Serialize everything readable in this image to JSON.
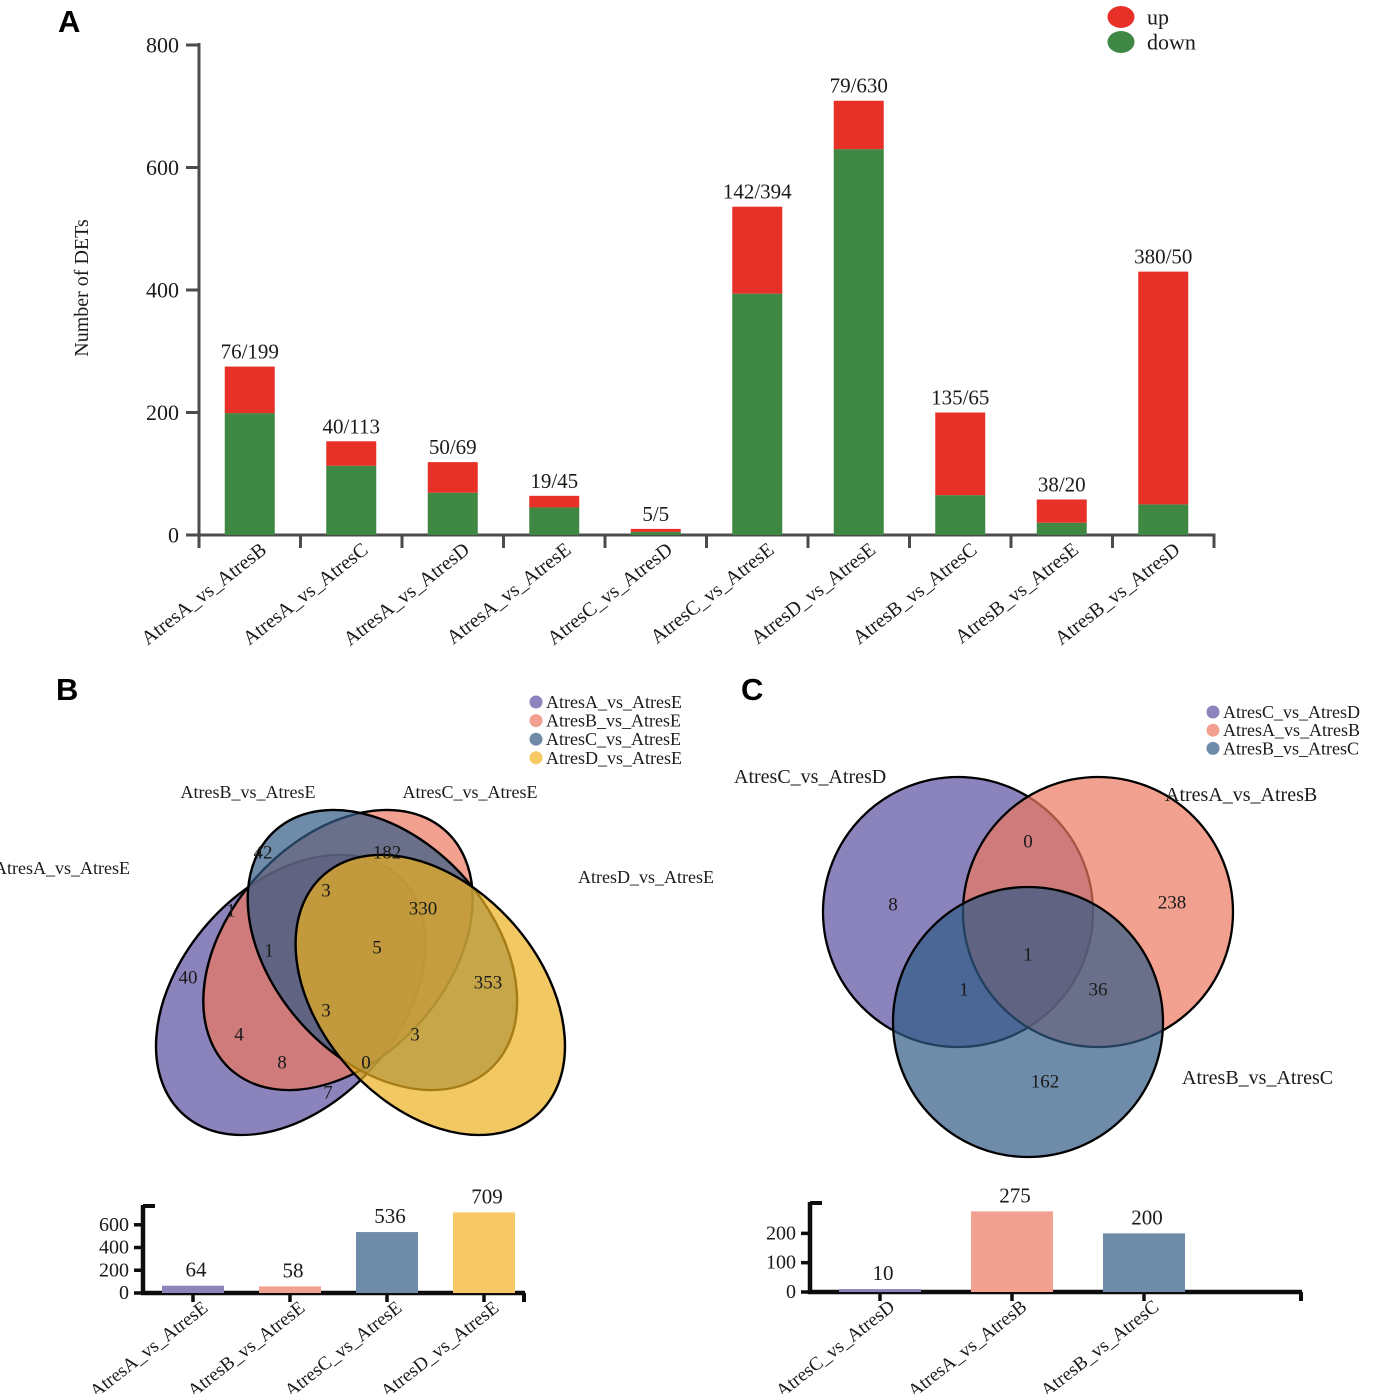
{
  "panels": {
    "a": {
      "letter": "A"
    },
    "b": {
      "letter": "B"
    },
    "c": {
      "letter": "C"
    }
  },
  "colors": {
    "up_red": "#e73128",
    "down_green": "#3e8843",
    "axis_gray": "#4b4b4b",
    "mini_axis_black": "#0d0d0d",
    "venn_display": {
      "purple": "#8b84bd",
      "salmon": "#f2a08f",
      "blue": "#6e8caa",
      "yellow": "#f7c863"
    },
    "venn_base": {
      "purple": "#5a50a0",
      "salmon": "#ec775f",
      "blue": "#305b86",
      "yellow": "#edb020"
    }
  },
  "chart_data": [
    {
      "id": "detsStacked",
      "type": "bar",
      "stacked": true,
      "ylabel": "Number of DETs",
      "yticks": [
        0,
        200,
        400,
        600,
        800
      ],
      "ylim": [
        0,
        800
      ],
      "grid": false,
      "legend_position": "top-right",
      "categories": [
        "AtresA_vs_AtresB",
        "AtresA_vs_AtresC",
        "AtresA_vs_AtresD",
        "AtresA_vs_AtresE",
        "AtresC_vs_AtresD",
        "AtresC_vs_AtresE",
        "AtresD_vs_AtresE",
        "AtresB_vs_AtresC",
        "AtresB_vs_AtresE",
        "AtresB_vs_AtresD"
      ],
      "series": [
        {
          "name": "down",
          "color": "#3e8843",
          "values": [
            199,
            113,
            69,
            45,
            5,
            394,
            630,
            65,
            20,
            50
          ]
        },
        {
          "name": "up",
          "color": "#e73128",
          "values": [
            76,
            40,
            50,
            19,
            5,
            142,
            79,
            135,
            38,
            380
          ]
        }
      ],
      "bar_labels": [
        "76/199",
        "40/113",
        "50/69",
        "19/45",
        "5/5",
        "142/394",
        "79/630",
        "135/65",
        "38/20",
        "380/50"
      ],
      "legend": [
        {
          "label": "up",
          "color": "#e73128"
        },
        {
          "label": "down",
          "color": "#3e8843"
        }
      ]
    },
    {
      "id": "vennB",
      "type": "venn",
      "sets": [
        {
          "key": "A",
          "name": "AtresA_vs_AtresE",
          "base_color": "#5a50a0",
          "display_color": "#8b84bd"
        },
        {
          "key": "B",
          "name": "AtresB_vs_AtresE",
          "base_color": "#ec775f",
          "display_color": "#f2a08f"
        },
        {
          "key": "C",
          "name": "AtresC_vs_AtresE",
          "base_color": "#305b86",
          "display_color": "#6e8caa"
        },
        {
          "key": "D",
          "name": "AtresD_vs_AtresE",
          "base_color": "#edb020",
          "display_color": "#f7c863"
        }
      ],
      "regions": {
        "A": 40,
        "B": 42,
        "C": 182,
        "D": 353,
        "AB": 1,
        "AC": 4,
        "AD": 7,
        "BC": 3,
        "BD": 3,
        "CD": 330,
        "ABC": 1,
        "ABD": 0,
        "ACD": 8,
        "BCD": 5,
        "ABCD": 3
      }
    },
    {
      "id": "vennBBar",
      "type": "bar",
      "categories": [
        "AtresA_vs_AtresE",
        "AtresB_vs_AtresE",
        "AtresC_vs_AtresE",
        "AtresD_vs_AtresE"
      ],
      "values": [
        64,
        58,
        536,
        709
      ],
      "colors": [
        "#8b84bd",
        "#f2a08f",
        "#6e8caa",
        "#f7c863"
      ],
      "yticks": [
        0,
        200,
        400,
        600
      ],
      "ylim": [
        0,
        730
      ]
    },
    {
      "id": "vennC",
      "type": "venn",
      "sets": [
        {
          "key": "A",
          "name": "AtresC_vs_AtresD",
          "base_color": "#5a50a0",
          "display_color": "#8b84bd"
        },
        {
          "key": "B",
          "name": "AtresA_vs_AtresB",
          "base_color": "#ec775f",
          "display_color": "#f2a08f"
        },
        {
          "key": "C",
          "name": "AtresB_vs_AtresC",
          "base_color": "#305b86",
          "display_color": "#6e8caa"
        }
      ],
      "regions": {
        "A": 8,
        "B": 238,
        "C": 162,
        "AB": 0,
        "AC": 1,
        "BC": 36,
        "ABC": 1
      }
    },
    {
      "id": "vennCBar",
      "type": "bar",
      "categories": [
        "AtresC_vs_AtresD",
        "AtresA_vs_AtresB",
        "AtresB_vs_AtresC"
      ],
      "values": [
        10,
        275,
        200
      ],
      "colors": [
        "#8b84bd",
        "#f2a08f",
        "#6e8caa"
      ],
      "yticks": [
        0,
        100,
        200
      ],
      "ylim": [
        0,
        290
      ]
    }
  ]
}
